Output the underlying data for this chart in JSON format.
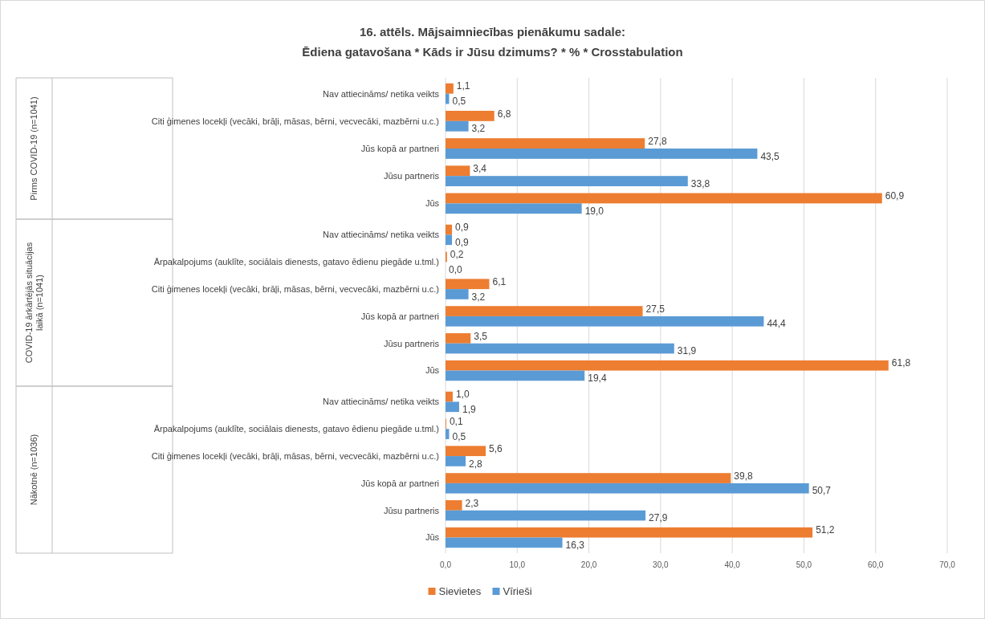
{
  "chart_data": [
    {
      "type": "bar",
      "orientation": "horizontal",
      "title": "16. attēls. Mājsaimniecības pienākumu sadale:",
      "subtitle": "Ēdiena gatavošana * Kāds ir Jūsu dzimums? * % * Crosstabulation",
      "ylabel": "Pirms COVID-19 (n=1041)",
      "categories": [
        "Nav attiecināms/ netika veikts",
        "Citi ģimenes locekļi (vecāki, brāļi, māsas, bērni, vecvecāki, mazbērni u.c.)",
        "Jūs kopā ar partneri",
        "Jūsu partneris",
        "Jūs"
      ],
      "series": [
        {
          "color": "#ed7d31",
          "values": [
            1.1,
            6.8,
            27.8,
            3.4,
            60.9
          ],
          "value_labels": [
            "1,1",
            "6,8",
            "27,8",
            "3,4",
            "60,9"
          ]
        },
        {
          "color": "#5b9bd5",
          "values": [
            0.5,
            3.2,
            43.5,
            33.8,
            19.0
          ],
          "value_labels": [
            "0,5",
            "3,2",
            "43,5",
            "33,8",
            "19,0"
          ]
        }
      ],
      "xlim": [
        0,
        70
      ],
      "xticks": [
        0,
        10,
        20,
        30,
        40,
        50,
        60,
        70
      ],
      "grid": "x",
      "tick_labels": "y"
    },
    {
      "type": "bar",
      "orientation": "horizontal",
      "ylabel": "COVID-19 ārkārtējās situācijas laikā (n=1041)",
      "categories": [
        "Nav attiecināms/ netika veikts",
        "Ārpakalpojums (auklīte, sociālais dienests, gatavo ēdienu piegāde u.tml.)",
        "Citi ģimenes locekļi (vecāki, brāļi, māsas, bērni, vecvecāki, mazbērni u.c.)",
        "Jūs kopā ar partneri",
        "Jūsu partneris",
        "Jūs"
      ],
      "series": [
        {
          "color": "#ed7d31",
          "values": [
            0.9,
            0.2,
            6.1,
            27.5,
            3.5,
            61.8
          ],
          "value_labels": [
            "0,9",
            "0,2",
            "6,1",
            "27,5",
            "3,5",
            "61,8"
          ]
        },
        {
          "color": "#5b9bd5",
          "values": [
            0.9,
            0.0,
            3.2,
            44.4,
            31.9,
            19.4
          ],
          "value_labels": [
            "0,9",
            "0,0",
            "3,2",
            "44,4",
            "31,9",
            "19,4"
          ]
        }
      ],
      "xlim": [
        0,
        70
      ],
      "xticks": [
        0,
        10,
        20,
        30,
        40,
        50,
        60,
        70
      ],
      "grid": "x",
      "tick_labels": "y"
    },
    {
      "type": "bar",
      "orientation": "horizontal",
      "ylabel": "Nākotnē (n=1036)",
      "categories": [
        "Nav attiecināms/ netika veikts",
        "Ārpakalpojums (auklīte, sociālais dienests, gatavo ēdienu piegāde u.tml.)",
        "Citi ģimenes locekļi (vecāki, brāļi, māsas, bērni, vecvecāki, mazbērni u.c.)",
        "Jūs kopā ar partneri",
        "Jūsu partneris",
        "Jūs"
      ],
      "series": [
        {
          "name": "Sievietes",
          "color": "#ed7d31",
          "values": [
            1.0,
            0.1,
            5.6,
            39.8,
            2.3,
            51.2
          ],
          "value_labels": [
            "1,0",
            "0,1",
            "5,6",
            "39,8",
            "2,3",
            "51,2"
          ]
        },
        {
          "name": "Vīrieši",
          "color": "#5b9bd5",
          "values": [
            1.9,
            0.5,
            2.8,
            50.7,
            27.9,
            16.3
          ],
          "value_labels": [
            "1,9",
            "0,5",
            "2,8",
            "50,7",
            "27,9",
            "16,3"
          ]
        }
      ],
      "xlim": [
        0,
        70
      ],
      "xticks": [
        {
          "value": 0,
          "label": "0,0"
        },
        {
          "value": 10,
          "label": "10,0"
        },
        {
          "value": 20,
          "label": "20,0"
        },
        {
          "value": 30,
          "label": "30,0"
        },
        {
          "value": 40,
          "label": "40,0"
        },
        {
          "value": 50,
          "label": "50,0"
        },
        {
          "value": 60,
          "label": "60,0"
        },
        {
          "value": 70,
          "label": "70,0"
        }
      ],
      "grid": "x",
      "legend": "bottom"
    }
  ]
}
